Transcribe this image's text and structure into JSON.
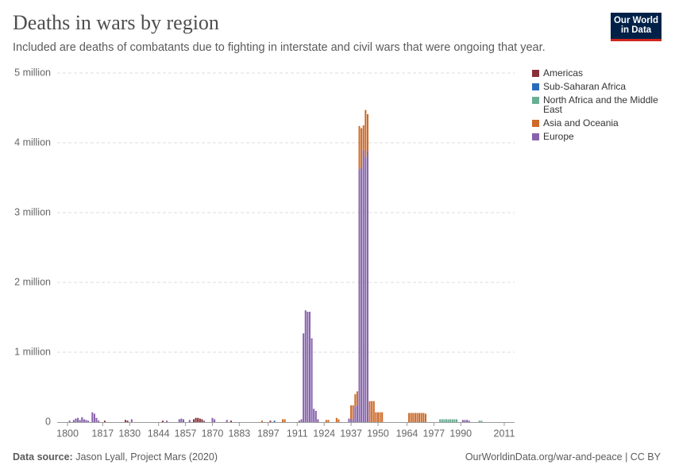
{
  "chart_data": {
    "type": "bar",
    "stacked": true,
    "title": "Deaths in wars by region",
    "subtitle": "Included are deaths of combatants due to fighting in interstate and civil wars that were ongoing that year.",
    "x": [
      1801,
      1803,
      1804,
      1805,
      1806,
      1807,
      1808,
      1809,
      1810,
      1812,
      1813,
      1814,
      1815,
      1818,
      1828,
      1829,
      1831,
      1846,
      1848,
      1854,
      1855,
      1856,
      1859,
      1861,
      1862,
      1863,
      1864,
      1865,
      1866,
      1870,
      1871,
      1877,
      1879,
      1894,
      1898,
      1900,
      1904,
      1905,
      1912,
      1913,
      1914,
      1915,
      1916,
      1917,
      1918,
      1919,
      1920,
      1921,
      1925,
      1926,
      1930,
      1931,
      1936,
      1937,
      1938,
      1939,
      1940,
      1941,
      1942,
      1943,
      1944,
      1945,
      1946,
      1947,
      1948,
      1949,
      1950,
      1951,
      1952,
      1965,
      1966,
      1967,
      1968,
      1969,
      1970,
      1971,
      1972,
      1973,
      1980,
      1981,
      1982,
      1983,
      1984,
      1985,
      1986,
      1987,
      1988,
      1991,
      1992,
      1993,
      1994,
      1999,
      2000
    ],
    "series": [
      {
        "name": "Americas",
        "color": "#883039",
        "values": [
          0,
          0,
          0,
          0,
          0,
          0,
          0,
          0,
          0,
          0,
          0,
          0,
          0,
          20000,
          30000,
          20000,
          0,
          20000,
          0,
          0,
          0,
          0,
          0,
          40000,
          60000,
          60000,
          50000,
          40000,
          0,
          0,
          0,
          0,
          20000,
          0,
          20000,
          0,
          0,
          0,
          0,
          0,
          0,
          0,
          0,
          0,
          0,
          0,
          0,
          0,
          0,
          0,
          0,
          0,
          0,
          0,
          0,
          0,
          0,
          0,
          0,
          0,
          0,
          0,
          0,
          0,
          0,
          0,
          0,
          0,
          0,
          0,
          0,
          0,
          0,
          0,
          0,
          0,
          0,
          0,
          0,
          0,
          0,
          0,
          0,
          0,
          0,
          0,
          0,
          0,
          0,
          0,
          0,
          0,
          0
        ]
      },
      {
        "name": "Sub-Saharan Africa",
        "color": "#286bbb",
        "values": [
          0,
          0,
          0,
          0,
          0,
          0,
          0,
          0,
          0,
          0,
          0,
          0,
          0,
          0,
          0,
          0,
          0,
          0,
          0,
          0,
          0,
          0,
          0,
          0,
          0,
          0,
          0,
          0,
          0,
          0,
          0,
          0,
          0,
          0,
          0,
          20000,
          0,
          0,
          0,
          0,
          0,
          0,
          0,
          0,
          0,
          0,
          0,
          0,
          0,
          0,
          0,
          0,
          0,
          0,
          0,
          0,
          0,
          0,
          0,
          0,
          0,
          0,
          0,
          0,
          0,
          0,
          0,
          0,
          0,
          0,
          0,
          0,
          0,
          0,
          0,
          0,
          0,
          0,
          0,
          0,
          0,
          0,
          0,
          0,
          0,
          0,
          0,
          0,
          0,
          0,
          0,
          0,
          0
        ]
      },
      {
        "name": "North Africa and the Middle East",
        "color": "#6aae93",
        "values": [
          0,
          0,
          0,
          0,
          0,
          0,
          0,
          0,
          0,
          0,
          0,
          0,
          0,
          0,
          0,
          0,
          0,
          0,
          0,
          0,
          0,
          0,
          0,
          0,
          0,
          0,
          0,
          0,
          0,
          0,
          0,
          0,
          0,
          0,
          0,
          0,
          0,
          0,
          0,
          0,
          0,
          0,
          0,
          0,
          0,
          0,
          0,
          0,
          0,
          0,
          0,
          0,
          0,
          0,
          0,
          0,
          0,
          0,
          0,
          0,
          0,
          0,
          0,
          0,
          0,
          0,
          0,
          0,
          0,
          0,
          0,
          0,
          0,
          0,
          0,
          0,
          0,
          0,
          40000,
          40000,
          40000,
          40000,
          40000,
          40000,
          40000,
          40000,
          40000,
          0,
          0,
          0,
          0,
          20000,
          20000
        ]
      },
      {
        "name": "Asia and Oceania",
        "color": "#cd6a29",
        "values": [
          0,
          0,
          0,
          0,
          0,
          0,
          0,
          0,
          0,
          0,
          0,
          0,
          0,
          0,
          0,
          0,
          0,
          0,
          0,
          0,
          0,
          0,
          0,
          0,
          0,
          0,
          0,
          0,
          0,
          0,
          0,
          0,
          0,
          20000,
          0,
          0,
          40000,
          40000,
          0,
          0,
          0,
          0,
          0,
          0,
          0,
          0,
          0,
          0,
          30000,
          30000,
          60000,
          40000,
          0,
          200000,
          200000,
          180000,
          200000,
          620000,
          560000,
          350000,
          670000,
          530000,
          300000,
          300000,
          300000,
          140000,
          140000,
          140000,
          140000,
          130000,
          130000,
          130000,
          130000,
          130000,
          130000,
          130000,
          130000,
          120000,
          0,
          0,
          0,
          0,
          0,
          0,
          0,
          0,
          0,
          0,
          0,
          0,
          0,
          0,
          0
        ]
      },
      {
        "name": "Europe",
        "color": "#8862ad",
        "values": [
          20000,
          30000,
          50000,
          60000,
          30000,
          70000,
          40000,
          30000,
          20000,
          140000,
          120000,
          60000,
          20000,
          0,
          0,
          0,
          40000,
          0,
          20000,
          40000,
          50000,
          40000,
          30000,
          0,
          0,
          0,
          0,
          0,
          20000,
          60000,
          40000,
          30000,
          0,
          0,
          0,
          0,
          0,
          0,
          20000,
          40000,
          1270000,
          1600000,
          1580000,
          1580000,
          1200000,
          190000,
          160000,
          40000,
          0,
          0,
          0,
          0,
          50000,
          40000,
          40000,
          220000,
          240000,
          3620000,
          3650000,
          3900000,
          3800000,
          3880000,
          0,
          0,
          0,
          0,
          0,
          0,
          0,
          0,
          0,
          0,
          0,
          0,
          0,
          0,
          0,
          0,
          0,
          0,
          0,
          0,
          0,
          0,
          0,
          0,
          0,
          30000,
          30000,
          30000,
          20000,
          0,
          0
        ]
      }
    ],
    "xlim": [
      1795,
      2016
    ],
    "xticks": [
      1800,
      1817,
      1830,
      1844,
      1857,
      1870,
      1883,
      1897,
      1911,
      1924,
      1937,
      1950,
      1964,
      1977,
      1990,
      2011
    ],
    "ylim": [
      0,
      5000000
    ],
    "yticks": [
      0,
      {
        "value": 1000000,
        "label": "1 million"
      },
      {
        "value": 2000000,
        "label": "2 million"
      },
      {
        "value": 3000000,
        "label": "3 million"
      },
      {
        "value": 4000000,
        "label": "4 million"
      },
      {
        "value": 5000000,
        "label": "5 million"
      }
    ],
    "grid": true
  },
  "branding": {
    "logo": [
      "Our World",
      "in Data"
    ],
    "source_label": "Data source:",
    "source": "Jason Lyall, Project Mars (2020)",
    "url": "OurWorldinData.org/war-and-peace | CC BY"
  }
}
